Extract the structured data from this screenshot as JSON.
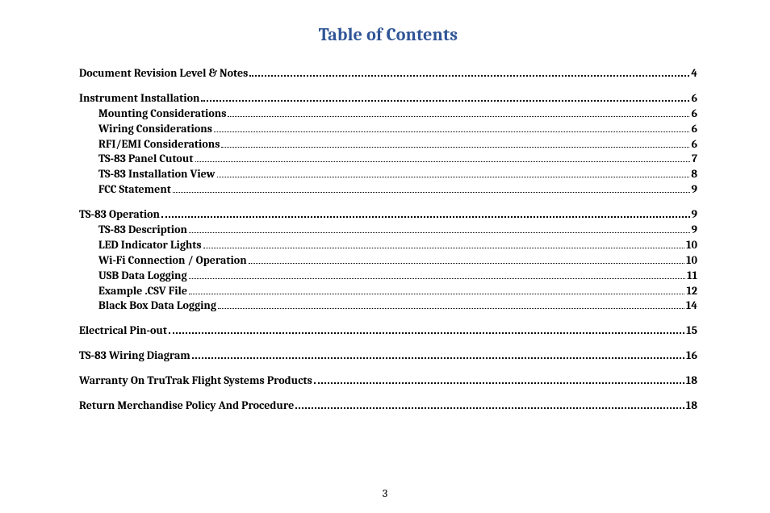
{
  "title": "Table of Contents",
  "title_color": "#2f5496",
  "page_number": "3",
  "entries": [
    {
      "level": 1,
      "label": "Document Revision Level & Notes",
      "page": "4",
      "section_start": true
    },
    {
      "level": 1,
      "label": "Instrument Installation",
      "page": "6",
      "section_start": true
    },
    {
      "level": 2,
      "label": "Mounting Considerations",
      "page": "6"
    },
    {
      "level": 2,
      "label": "Wiring Considerations",
      "page": "6"
    },
    {
      "level": 2,
      "label": "RFI/EMI Considerations",
      "page": "6"
    },
    {
      "level": 2,
      "label": "TS-83 Panel Cutout",
      "page": "7"
    },
    {
      "level": 2,
      "label": "TS-83 Installation View",
      "page": "8"
    },
    {
      "level": 2,
      "label": "FCC Statement",
      "page": "9"
    },
    {
      "level": 1,
      "label": "TS-83 Operation",
      "page": "9",
      "section_start": true
    },
    {
      "level": 2,
      "label": "TS-83 Description",
      "page": "9"
    },
    {
      "level": 2,
      "label": "LED Indicator Lights",
      "page": "10"
    },
    {
      "level": 2,
      "label": "Wi-Fi Connection / Operation",
      "page": "10"
    },
    {
      "level": 2,
      "label": "USB Data Logging",
      "page": "11"
    },
    {
      "level": 2,
      "label": "Example .CSV File",
      "page": "12"
    },
    {
      "level": 2,
      "label": "Black Box Data Logging",
      "page": "14"
    },
    {
      "level": 1,
      "label": "Electrical Pin-out",
      "page": "15",
      "section_start": true
    },
    {
      "level": 1,
      "label": "TS-83 Wiring Diagram",
      "page": "16",
      "section_start": true
    },
    {
      "level": 1,
      "label": "Warranty On TruTrak Flight Systems Products",
      "page": "18",
      "section_start": true
    },
    {
      "level": 1,
      "label": "Return Merchandise Policy And Procedure",
      "page": "18",
      "section_start": true
    }
  ]
}
